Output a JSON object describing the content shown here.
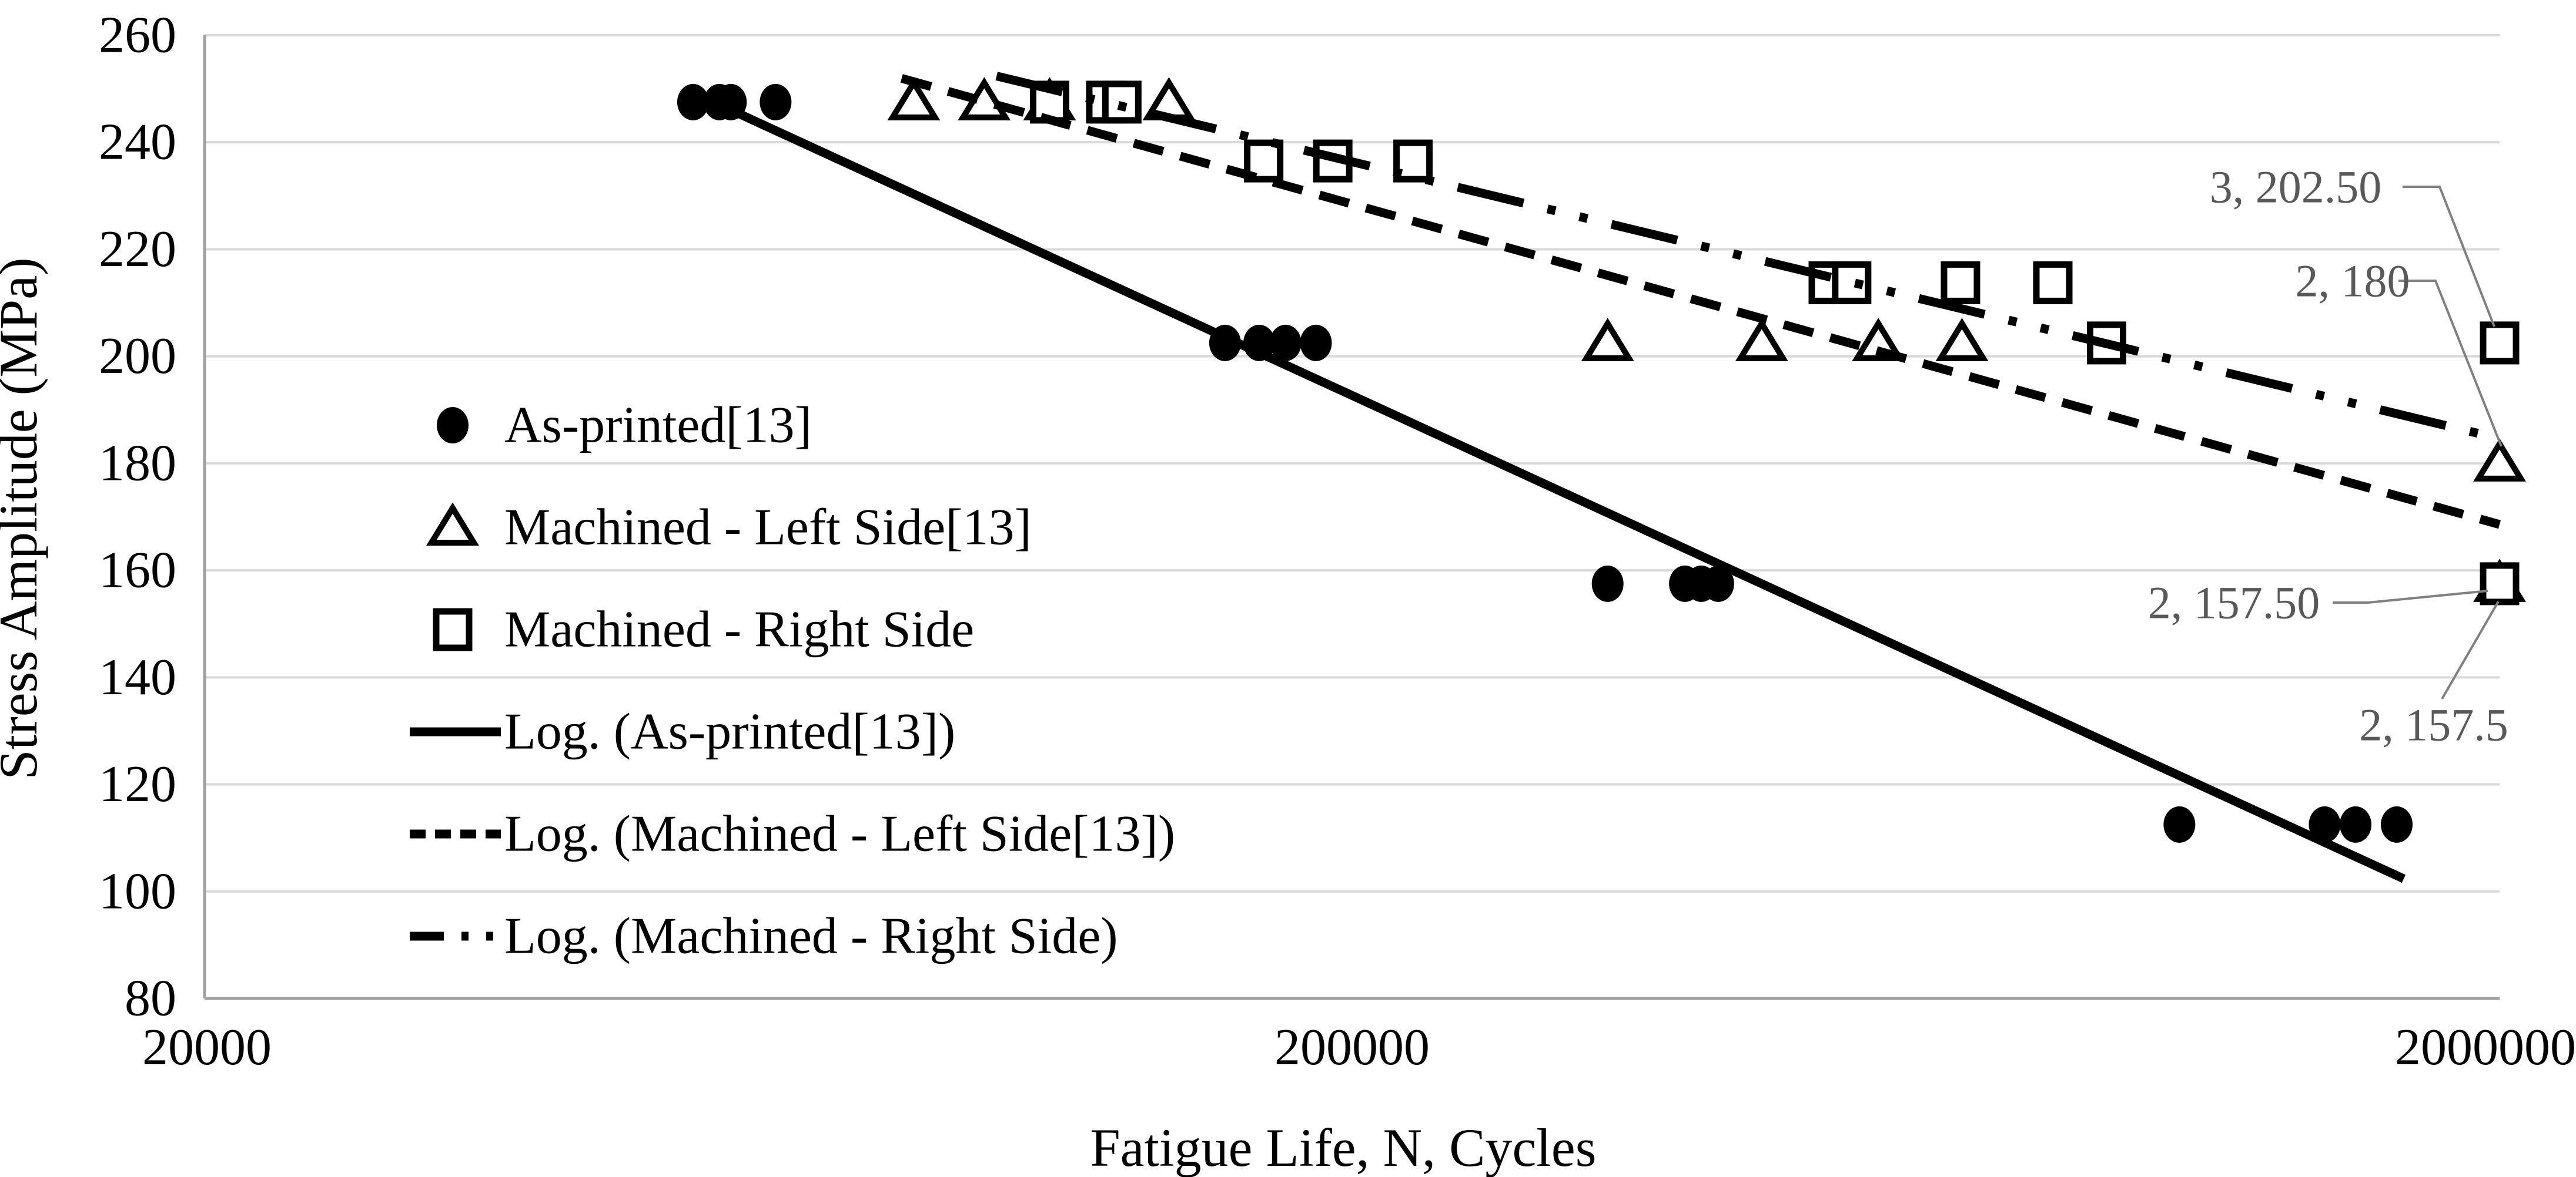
{
  "figure": {
    "background": "#ffffff"
  },
  "chart_data": {
    "type": "scatter",
    "title": "",
    "xlabel": "Fatigue Life, N, Cycles",
    "ylabel": "Stress Amplitude (MPa)",
    "x_scale": "log",
    "xlim": [
      20000,
      2000000
    ],
    "x_tick_values": [
      20000,
      200000,
      2000000
    ],
    "x_tick_labels": [
      "20000",
      "200000",
      "2000000"
    ],
    "ylim": [
      80,
      260
    ],
    "y_tick_values": [
      80,
      100,
      120,
      140,
      160,
      180,
      200,
      220,
      240,
      260
    ],
    "y_tick_labels": [
      "80",
      "100",
      "120",
      "140",
      "160",
      "180",
      "200",
      "220",
      "240",
      "260"
    ],
    "grid": "horizontal",
    "legend_position": "inside-left-middle",
    "series": [
      {
        "name": "As-printed[13]",
        "marker": "filled-circle",
        "points": [
          [
            53300,
            247.5
          ],
          [
            56200,
            247.5
          ],
          [
            57500,
            247.5
          ],
          [
            62900,
            247.5
          ],
          [
            155000,
            202.5
          ],
          [
            166000,
            202.5
          ],
          [
            175000,
            202.5
          ],
          [
            186000,
            202.5
          ],
          [
            334000,
            157.5
          ],
          [
            390000,
            157.5
          ],
          [
            403000,
            157.5
          ],
          [
            417000,
            157.5
          ],
          [
            1052000,
            112.5
          ],
          [
            1408000,
            112.5
          ],
          [
            1498000,
            112.5
          ],
          [
            1627000,
            112.5
          ]
        ]
      },
      {
        "name": "Machined - Left Side[13]",
        "marker": "open-triangle",
        "points": [
          [
            83000,
            247.5
          ],
          [
            95600,
            247.5
          ],
          [
            109000,
            247.5
          ],
          [
            138500,
            247.5
          ],
          [
            334000,
            202.5
          ],
          [
            455000,
            202.5
          ],
          [
            575000,
            202.5
          ],
          [
            680000,
            202.5
          ],
          [
            2000000,
            180
          ],
          [
            2000000,
            157.5
          ]
        ]
      },
      {
        "name": "Machined - Right Side",
        "marker": "open-square",
        "points": [
          [
            109000,
            247.5
          ],
          [
            122000,
            247.5
          ],
          [
            126000,
            247.5
          ],
          [
            167500,
            236.5
          ],
          [
            192400,
            236.5
          ],
          [
            226000,
            236.5
          ],
          [
            520000,
            213.75
          ],
          [
            545000,
            213.75
          ],
          [
            678000,
            213.75
          ],
          [
            816000,
            213.75
          ],
          [
            909000,
            202.5
          ],
          [
            2000000,
            202.5
          ],
          [
            2000000,
            157.5
          ]
        ]
      }
    ],
    "trendlines": [
      {
        "name": "Log. (As-printed[13])",
        "style": "solid",
        "equation": "S = 715.1 - 42.8*ln(N)",
        "a": 715.1,
        "b": -42.8,
        "n_start": 55000,
        "n_end": 1650000
      },
      {
        "name": "Log. (Machined - Left Side[13])",
        "style": "dashed",
        "equation": "S = 545.8 - 26.0*ln(N)",
        "a": 545.8,
        "b": -26.0,
        "n_start": 81000,
        "n_end": 2000000
      },
      {
        "name": "Log. (Machined - Right Side)",
        "style": "long-dash-dot-dot",
        "equation": "S = 510.5 - 22.46*ln(N)",
        "a": 510.5,
        "b": -22.46,
        "n_start": 98000,
        "n_end": 2000000
      }
    ],
    "point_labels": [
      {
        "text": "3, 202.50",
        "anchor_series": "Machined - Right Side",
        "anchor_point": [
          2000000,
          202.5
        ]
      },
      {
        "text": "2, 180",
        "anchor_series": "Machined - Left Side[13]",
        "anchor_point": [
          2000000,
          180
        ]
      },
      {
        "text": "2, 157.50",
        "anchor_series": "Machined - Right Side",
        "anchor_point": [
          2000000,
          157.5
        ]
      },
      {
        "text": "2, 157.5",
        "anchor_series": "Machined - Left Side[13]",
        "anchor_point": [
          2000000,
          157.5
        ]
      }
    ],
    "legend_entries": [
      "As-printed[13]",
      "Machined - Left Side[13]",
      "Machined - Right Side",
      "Log. (As-printed[13])",
      "Log. (Machined - Left Side[13])",
      "Log. (Machined - Right Side)"
    ],
    "colors": {
      "points": "#000000",
      "grid": "#d9d9d9",
      "axis": "#a0a0a0",
      "annotation_text": "#595959",
      "leader_line": "#808080",
      "background": "#ffffff"
    }
  }
}
